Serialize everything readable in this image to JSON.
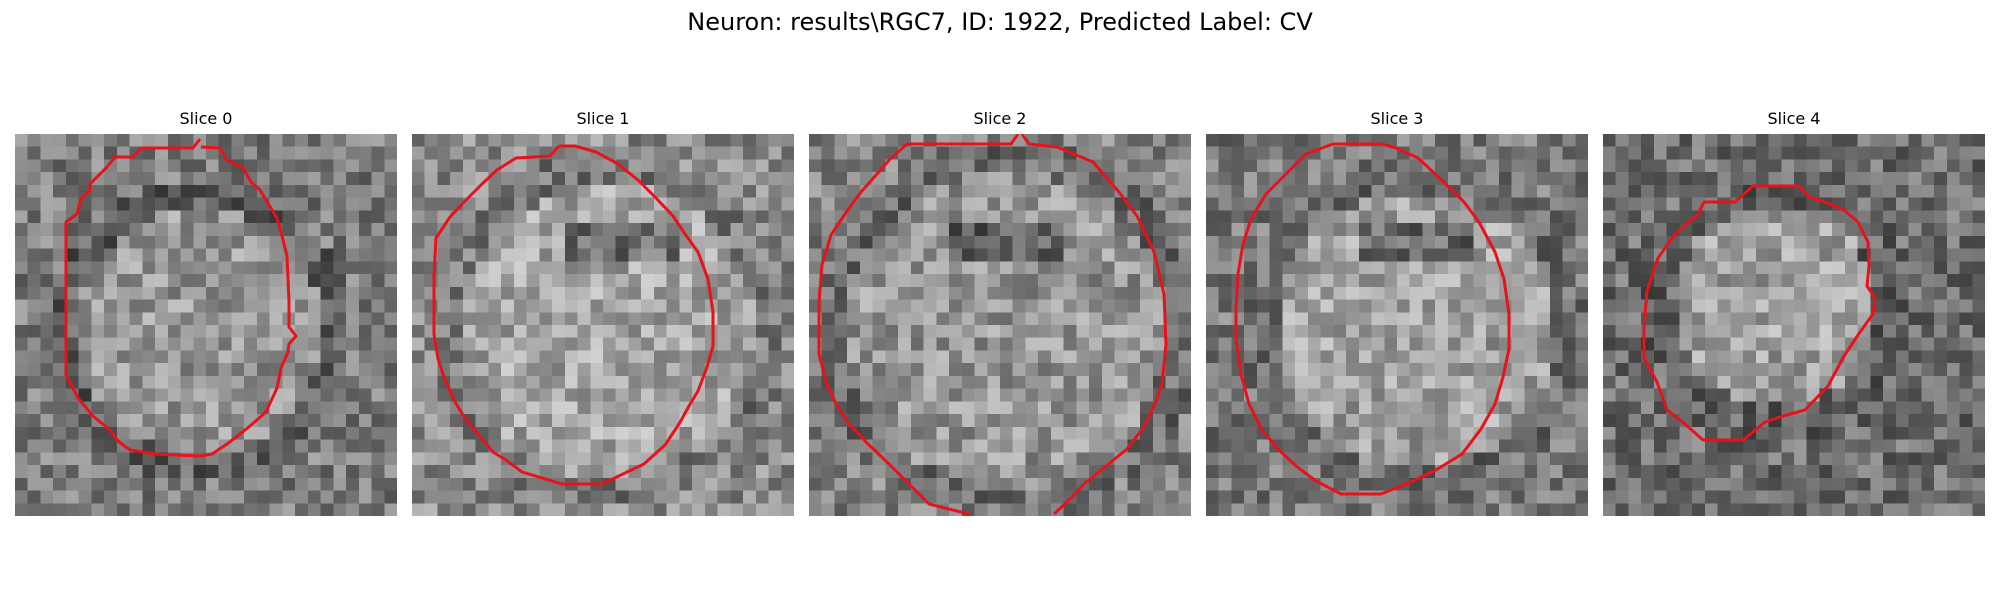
{
  "figure": {
    "title": "Neuron: results\\RGC7, ID: 1922, Predicted Label: CV"
  },
  "contour_color": "#e8121b",
  "panels": [
    {
      "title": "Slice 0"
    },
    {
      "title": "Slice 1"
    },
    {
      "title": "Slice 2"
    },
    {
      "title": "Slice 3"
    },
    {
      "title": "Slice 4"
    }
  ]
}
